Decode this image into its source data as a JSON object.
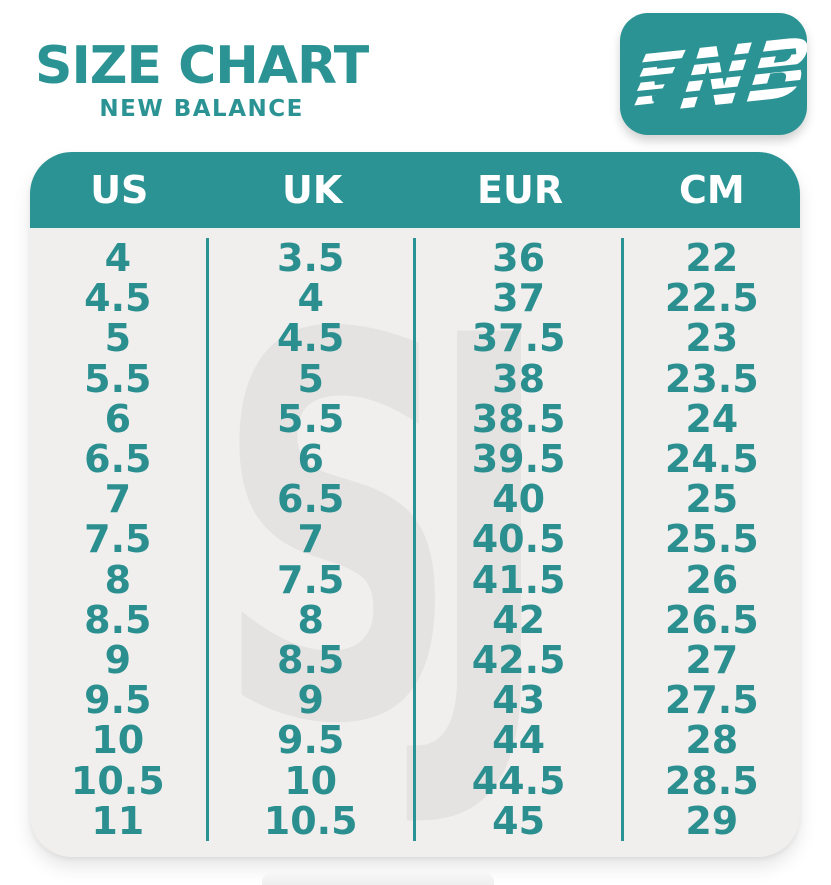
{
  "header": {
    "title": "SIZE CHART",
    "subtitle": "NEW BALANCE"
  },
  "logo": {
    "label": "NB"
  },
  "watermark": {
    "text": "SJ"
  },
  "colors": {
    "teal": "#2b9394",
    "body_bg": "#f0efed",
    "watermark": "#e5e3e1",
    "white": "#ffffff",
    "cell_text": "#2b8f90"
  },
  "chart_data": {
    "type": "table",
    "title": "SIZE CHART",
    "subtitle": "NEW BALANCE",
    "columns": [
      "US",
      "UK",
      "EUR",
      "CM"
    ],
    "rows": [
      [
        "4",
        "3.5",
        "36",
        "22"
      ],
      [
        "4.5",
        "4",
        "37",
        "22.5"
      ],
      [
        "5",
        "4.5",
        "37.5",
        "23"
      ],
      [
        "5.5",
        "5",
        "38",
        "23.5"
      ],
      [
        "6",
        "5.5",
        "38.5",
        "24"
      ],
      [
        "6.5",
        "6",
        "39.5",
        "24.5"
      ],
      [
        "7",
        "6.5",
        "40",
        "25"
      ],
      [
        "7.5",
        "7",
        "40.5",
        "25.5"
      ],
      [
        "8",
        "7.5",
        "41.5",
        "26"
      ],
      [
        "8.5",
        "8",
        "42",
        "26.5"
      ],
      [
        "9",
        "8.5",
        "42.5",
        "27"
      ],
      [
        "9.5",
        "9",
        "43",
        "27.5"
      ],
      [
        "10",
        "9.5",
        "44",
        "28"
      ],
      [
        "10.5",
        "10",
        "44.5",
        "28.5"
      ],
      [
        "11",
        "10.5",
        "45",
        "29"
      ]
    ]
  }
}
